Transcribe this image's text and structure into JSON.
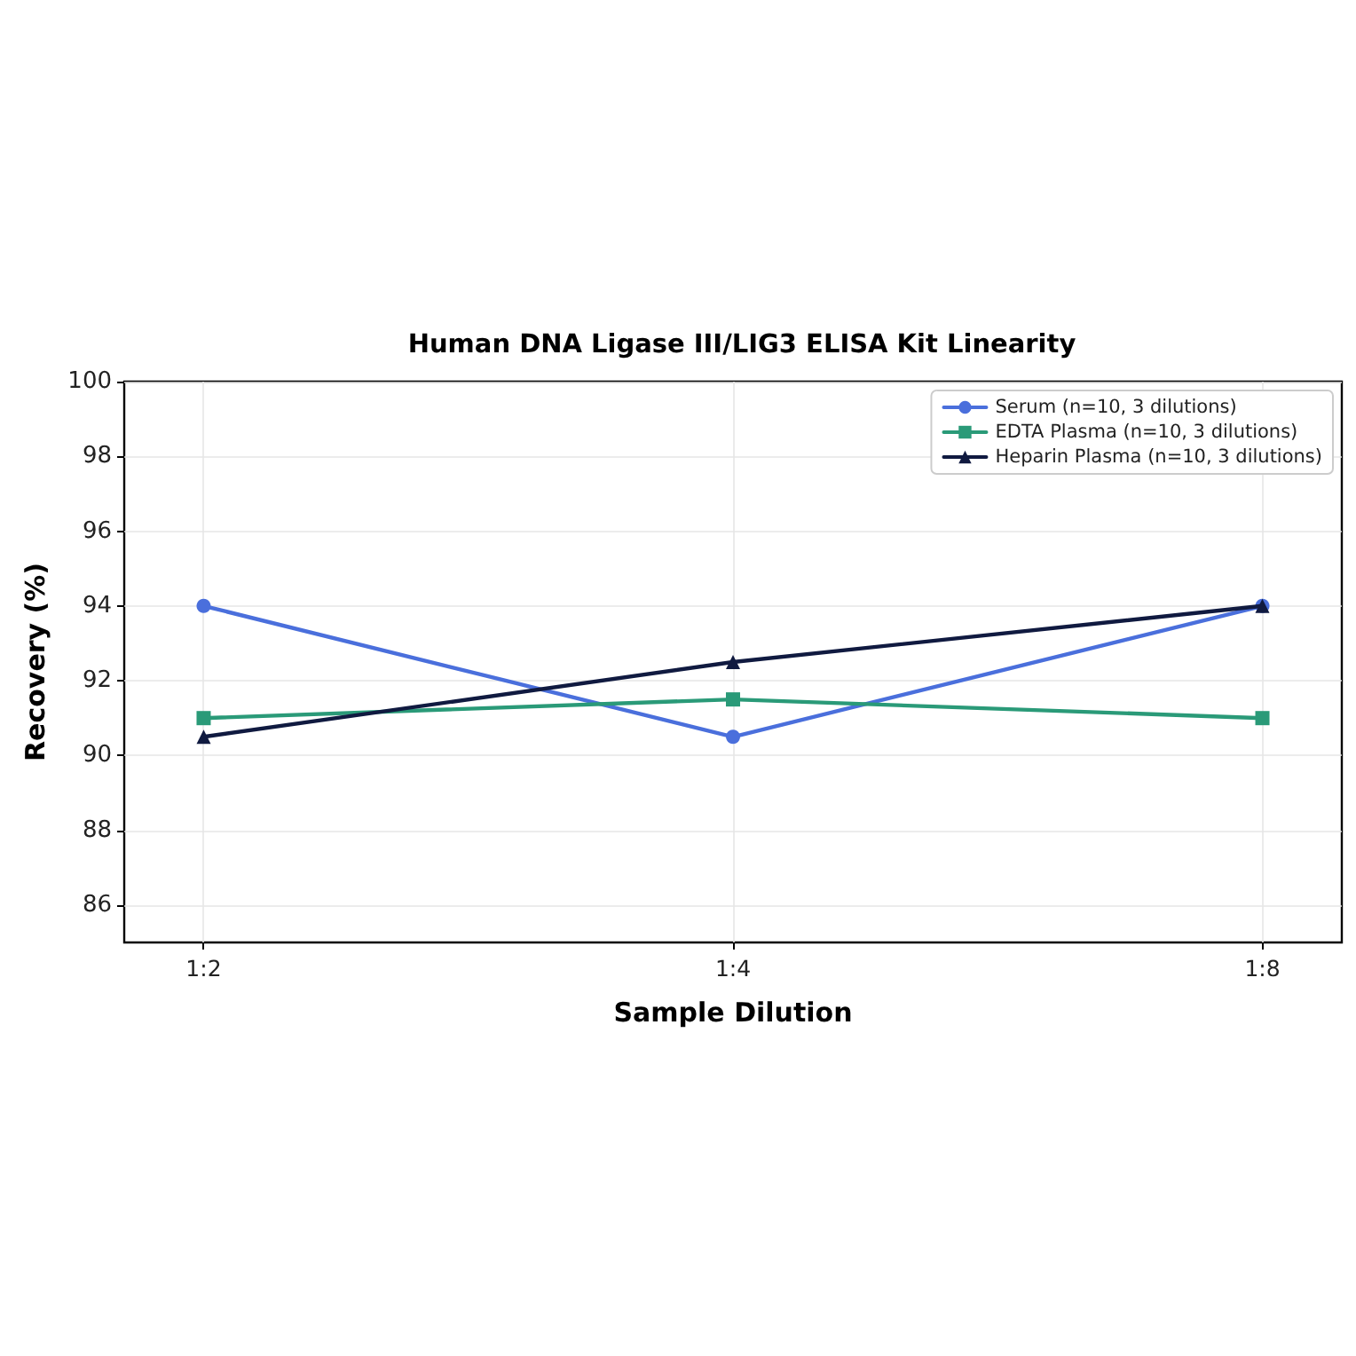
{
  "chart_data": {
    "type": "line",
    "title": "Human DNA Ligase III/LIG3 ELISA Kit Linearity",
    "xlabel": "Sample Dilution",
    "ylabel": "Recovery (%)",
    "categories": [
      "1:2",
      "1:4",
      "1:8"
    ],
    "series": [
      {
        "name": "Serum (n=10, 3 dilutions)",
        "color": "#4a6fdc",
        "marker": "circle",
        "values": [
          94,
          90.5,
          94
        ]
      },
      {
        "name": "EDTA Plasma (n=10, 3 dilutions)",
        "color": "#2a9a78",
        "marker": "square",
        "values": [
          91,
          91.5,
          91
        ]
      },
      {
        "name": "Heparin Plasma (n=10, 3 dilutions)",
        "color": "#101a40",
        "marker": "triangle",
        "values": [
          90.5,
          92.5,
          94
        ]
      }
    ],
    "ylim": [
      85,
      100
    ],
    "yticks": [
      86,
      88,
      90,
      92,
      94,
      96,
      98,
      100
    ],
    "grid": true,
    "legend": "top right",
    "line_style": "solid"
  }
}
